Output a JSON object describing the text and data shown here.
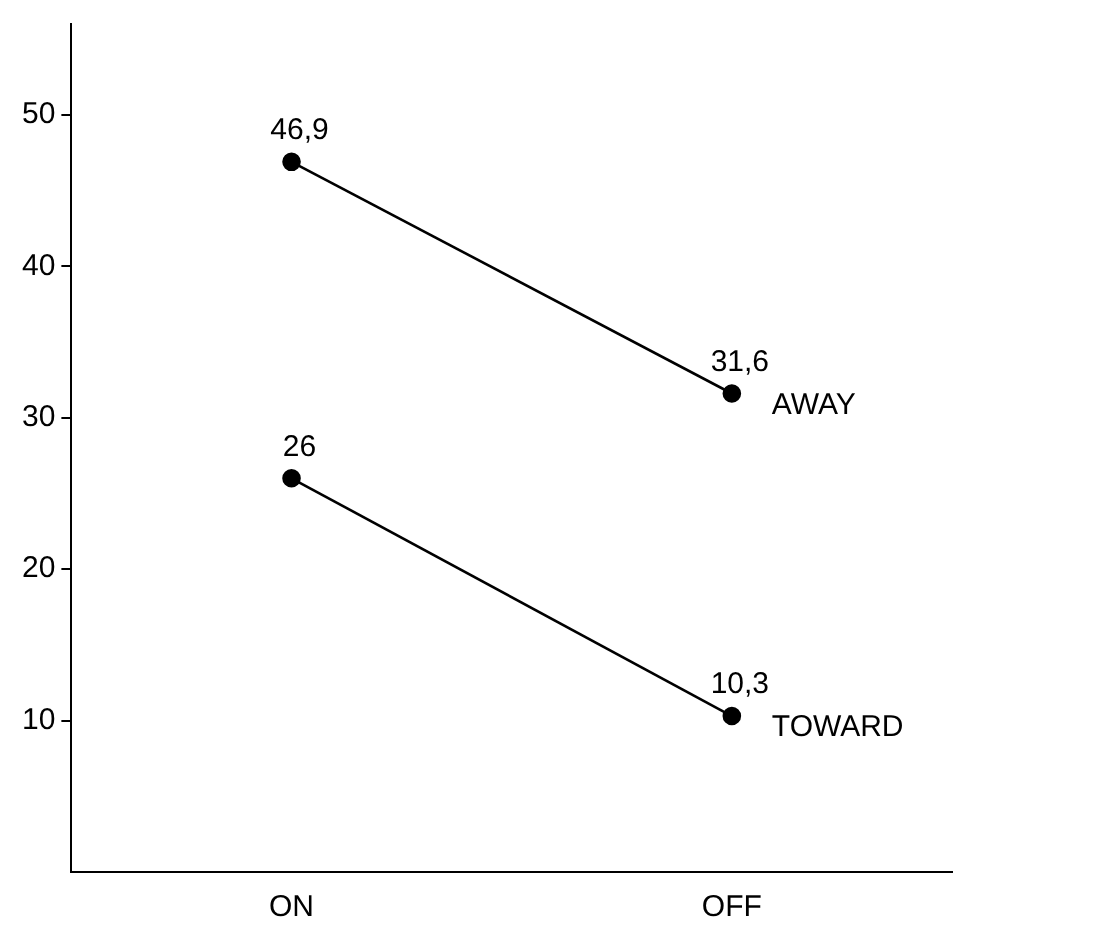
{
  "chart_data": {
    "type": "line",
    "categories": [
      "ON",
      "OFF"
    ],
    "series": [
      {
        "name": "AWAY",
        "color": "#000000",
        "values": [
          46.9,
          31.6
        ],
        "value_labels": [
          "46,9",
          "31,6"
        ]
      },
      {
        "name": "TOWARD",
        "color": "#000000",
        "values": [
          26,
          10.3
        ],
        "value_labels": [
          "26",
          "10,3"
        ]
      }
    ],
    "ylim": [
      0,
      56
    ],
    "yticks": [
      10,
      20,
      30,
      40,
      50
    ],
    "grid": false,
    "legend": false,
    "marker": "circle",
    "line_style": "solid"
  }
}
